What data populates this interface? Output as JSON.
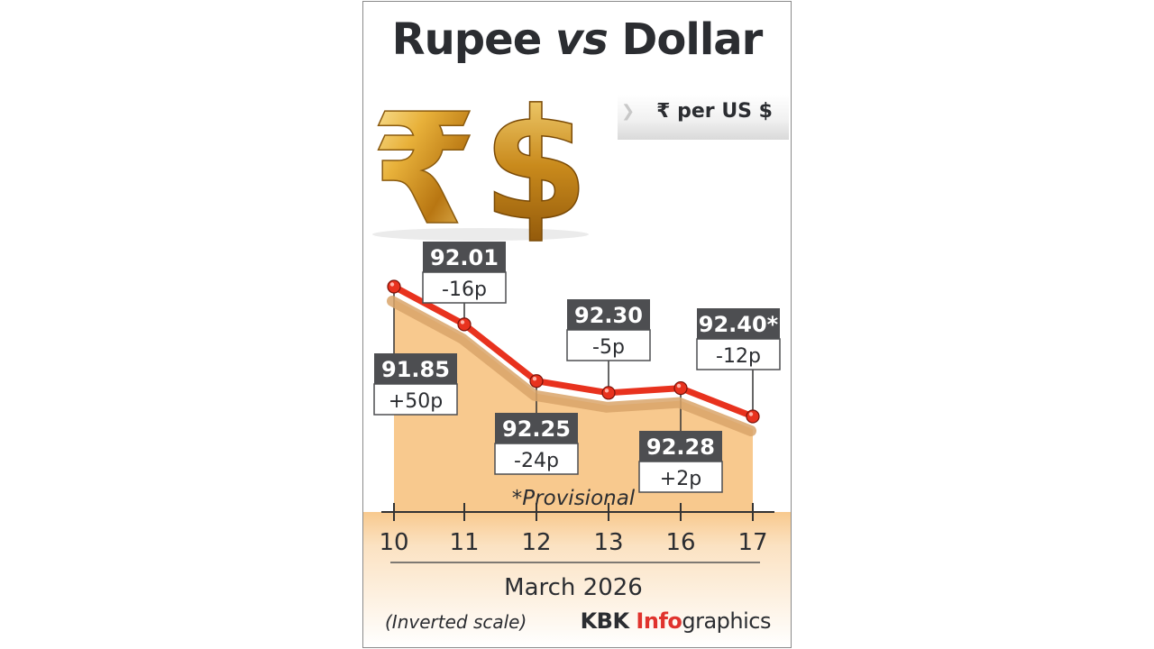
{
  "title": {
    "part1": "Rupee ",
    "part2": "vs",
    "part3": " Dollar"
  },
  "unit_label": "₹ per US $",
  "chart_data": {
    "type": "line",
    "title": "Rupee vs Dollar",
    "ylabel": "₹ per US $",
    "xlabel": "March 2026",
    "categories": [
      "10",
      "11",
      "12",
      "13",
      "16",
      "17"
    ],
    "series": [
      {
        "values": [
          91.85,
          92.01,
          92.25,
          92.3,
          92.28,
          92.4
        ]
      }
    ],
    "value_labels": [
      "91.85",
      "92.01",
      "92.25",
      "92.30",
      "92.28",
      "92.40*"
    ],
    "change_labels": [
      "+50p",
      "-16p",
      "-24p",
      "-5p",
      "+2p",
      "-12p"
    ],
    "label_side": [
      "below",
      "above",
      "below",
      "above",
      "below",
      "above"
    ],
    "y_inverted": true,
    "ylim": [
      91.75,
      92.75
    ],
    "note": "*Provisional",
    "colors": {
      "line": "#e8321e",
      "area": "#f8c98e",
      "marker": "#e8321e",
      "label_bg": "#4d4e51"
    }
  },
  "footer": {
    "scale_note": "(Inverted scale)",
    "brand_part1": "KBK ",
    "brand_part2": "Info",
    "brand_part3": "graphics"
  }
}
